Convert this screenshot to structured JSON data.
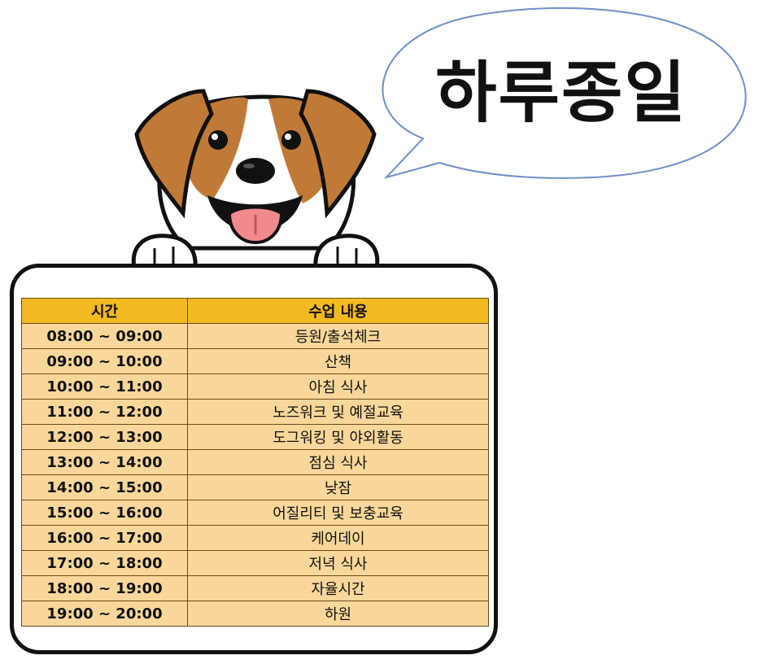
{
  "speech_bubble": {
    "title": "하루종일"
  },
  "schedule": {
    "headers": {
      "time": "시간",
      "content": "수업 내용"
    },
    "rows": [
      {
        "time": "08:00 ~ 09:00",
        "content": "등원/출석체크"
      },
      {
        "time": "09:00 ~ 10:00",
        "content": "산책"
      },
      {
        "time": "10:00 ~ 11:00",
        "content": "아침 식사"
      },
      {
        "time": "11:00 ~ 12:00",
        "content": "노즈워크 및 예절교육"
      },
      {
        "time": "12:00 ~ 13:00",
        "content": "도그워킹 및 야외활동"
      },
      {
        "time": "13:00 ~ 14:00",
        "content": "점심 식사"
      },
      {
        "time": "14:00 ~ 15:00",
        "content": "낮잠"
      },
      {
        "time": "15:00 ~ 16:00",
        "content": "어질리티 및 보충교육"
      },
      {
        "time": "16:00 ~ 17:00",
        "content": "케어데이"
      },
      {
        "time": "17:00 ~ 18:00",
        "content": "저녁 식사"
      },
      {
        "time": "18:00 ~ 19:00",
        "content": "자율시간"
      },
      {
        "time": "19:00 ~ 20:00",
        "content": "하원"
      }
    ]
  },
  "colors": {
    "header": "#f3b921",
    "cell": "#f9d79a",
    "dog_brown": "#c07a37"
  }
}
